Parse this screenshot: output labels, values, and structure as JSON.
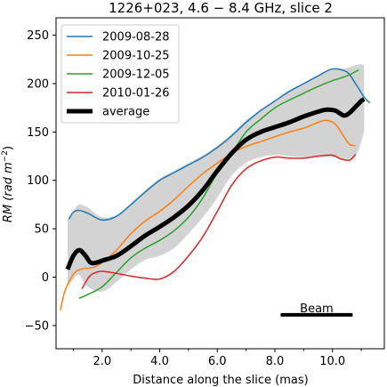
{
  "chart_data": {
    "type": "line",
    "title": "1226+023, 4.6 − 8.4 GHz, slice 2",
    "xlabel": "Distance along the slice (mas)",
    "ylabel_main": "RM (rad m",
    "ylabel_exp": "−2",
    "ylabel_close": ")",
    "xlim": [
      0.4,
      11.8
    ],
    "ylim": [
      -74,
      268
    ],
    "xticks": [
      2.0,
      4.0,
      6.0,
      8.0,
      10.0
    ],
    "xtick_labels": [
      "2.0",
      "4.0",
      "6.0",
      "8.0",
      "10.0"
    ],
    "yticks": [
      -50,
      0,
      50,
      100,
      150,
      200,
      250
    ],
    "ytick_labels": [
      "−50",
      "0",
      "50",
      "100",
      "150",
      "200",
      "250"
    ],
    "grid": false,
    "legend_position": "top-left",
    "series": [
      {
        "name": "2009-08-28",
        "color": "#1f77b4",
        "width": 1.5,
        "x": [
          0.85,
          1.0,
          1.2,
          1.5,
          2.0,
          2.5,
          3.0,
          3.5,
          4.0,
          4.5,
          5.0,
          5.5,
          6.0,
          6.5,
          7.0,
          7.5,
          8.0,
          8.5,
          9.0,
          9.5,
          10.0,
          10.5,
          10.8,
          11.1,
          11.3
        ],
        "y": [
          60,
          67,
          69,
          66,
          59,
          63,
          75,
          88,
          100,
          108,
          116,
          124,
          134,
          146,
          160,
          172,
          182,
          192,
          200,
          208,
          215,
          212,
          200,
          186,
          180
        ]
      },
      {
        "name": "2009-10-25",
        "color": "#ff7f0e",
        "width": 1.5,
        "x": [
          0.55,
          0.7,
          0.9,
          1.1,
          1.4,
          1.7,
          2.0,
          2.5,
          3.0,
          3.5,
          4.0,
          4.5,
          5.0,
          5.5,
          6.0,
          6.5,
          7.0,
          7.5,
          8.0,
          8.5,
          9.0,
          9.5,
          9.8,
          10.1,
          10.4,
          10.6,
          10.8
        ],
        "y": [
          -34,
          -15,
          -2,
          6,
          9,
          10,
          15,
          28,
          45,
          58,
          68,
          80,
          94,
          107,
          118,
          128,
          135,
          140,
          145,
          150,
          154,
          160,
          162,
          158,
          145,
          137,
          136
        ]
      },
      {
        "name": "2009-12-05",
        "color": "#2ca02c",
        "width": 1.5,
        "x": [
          1.2,
          1.5,
          2.0,
          2.5,
          3.0,
          3.5,
          4.0,
          4.5,
          5.0,
          5.5,
          6.0,
          6.5,
          7.0,
          7.5,
          8.0,
          8.5,
          9.0,
          9.5,
          10.0,
          10.5,
          10.9
        ],
        "y": [
          -22,
          -18,
          -10,
          5,
          20,
          30,
          38,
          48,
          62,
          82,
          108,
          128,
          150,
          163,
          175,
          183,
          190,
          197,
          203,
          208,
          214
        ]
      },
      {
        "name": "2010-01-26",
        "color": "#d62728",
        "width": 1.5,
        "x": [
          1.3,
          1.45,
          1.6,
          1.8,
          2.0,
          2.5,
          3.0,
          3.5,
          4.0,
          4.5,
          5.0,
          5.5,
          6.0,
          6.5,
          7.0,
          7.5,
          8.0,
          8.5,
          9.0,
          9.5,
          10.0,
          10.3,
          10.6,
          10.8
        ],
        "y": [
          -12,
          -4,
          2,
          5,
          6,
          4,
          1,
          -1,
          -2,
          6,
          22,
          42,
          68,
          95,
          112,
          120,
          124,
          123,
          123,
          125,
          126,
          122,
          121,
          127
        ]
      },
      {
        "name": "average",
        "color": "#000000",
        "width": 5,
        "x": [
          0.8,
          1.0,
          1.2,
          1.4,
          1.6,
          1.8,
          2.0,
          2.5,
          3.0,
          3.5,
          4.0,
          4.5,
          5.0,
          5.5,
          6.0,
          6.5,
          7.0,
          7.5,
          8.0,
          8.5,
          9.0,
          9.5,
          9.8,
          10.1,
          10.4,
          10.6,
          10.8,
          11.0,
          11.1
        ],
        "y": [
          8,
          22,
          28,
          23,
          15,
          15,
          17,
          22,
          32,
          43,
          52,
          62,
          74,
          90,
          110,
          128,
          142,
          150,
          155,
          160,
          166,
          171,
          173,
          172,
          167,
          170,
          176,
          182,
          184
        ]
      }
    ],
    "band": {
      "color": "#d3d3d3",
      "x": [
        0.8,
        1.0,
        1.2,
        1.5,
        2.0,
        2.5,
        3.0,
        3.5,
        4.0,
        4.5,
        5.0,
        5.5,
        6.0,
        6.5,
        7.0,
        7.5,
        8.0,
        8.5,
        9.0,
        9.5,
        10.0,
        10.5,
        10.8,
        11.0,
        11.1
      ],
      "upper": [
        60,
        68,
        75,
        72,
        62,
        64,
        76,
        90,
        102,
        110,
        118,
        126,
        136,
        148,
        162,
        172,
        182,
        192,
        200,
        208,
        214,
        216,
        219,
        220,
        219
      ],
      "lower": [
        -10,
        -2,
        2,
        -10,
        -15,
        -5,
        8,
        18,
        22,
        30,
        45,
        62,
        82,
        105,
        118,
        124,
        126,
        125,
        124,
        124,
        124,
        122,
        125,
        140,
        150
      ]
    },
    "annotation": {
      "text": "Beam",
      "x0": 8.2,
      "x1": 10.7,
      "y": -39
    }
  }
}
